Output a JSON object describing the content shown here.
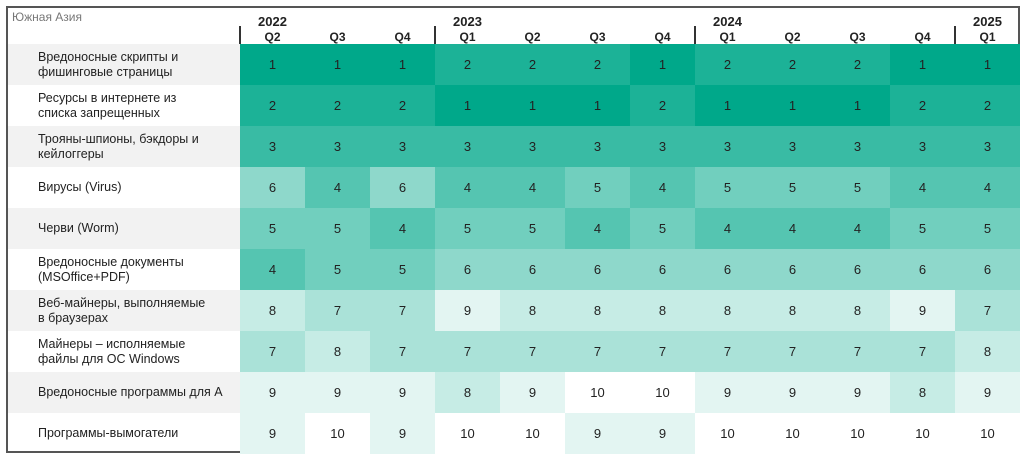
{
  "chart_data": {
    "type": "heatmap",
    "title": "Южная Азия",
    "years": [
      {
        "label": "2022",
        "col": 0
      },
      {
        "label": "2023",
        "col": 3
      },
      {
        "label": "2024",
        "col": 7
      },
      {
        "label": "2025",
        "col": 11
      }
    ],
    "columns": [
      "Q2",
      "Q3",
      "Q4",
      "Q1",
      "Q2",
      "Q3",
      "Q4",
      "Q1",
      "Q2",
      "Q3",
      "Q4",
      "Q1"
    ],
    "rows": [
      {
        "label": "Вредоносные скрипты и\nфишинговые страницы",
        "values": [
          1,
          1,
          1,
          2,
          2,
          2,
          1,
          2,
          2,
          2,
          1,
          1
        ]
      },
      {
        "label": "Ресурсы в интернете из\nсписка запрещенных",
        "values": [
          2,
          2,
          2,
          1,
          1,
          1,
          2,
          1,
          1,
          1,
          2,
          2
        ]
      },
      {
        "label": "Трояны-шпионы, бэкдоры и\nкейлоггеры",
        "values": [
          3,
          3,
          3,
          3,
          3,
          3,
          3,
          3,
          3,
          3,
          3,
          3
        ]
      },
      {
        "label": "Вирусы (Virus)",
        "values": [
          6,
          4,
          6,
          4,
          4,
          5,
          4,
          5,
          5,
          5,
          4,
          4
        ]
      },
      {
        "label": "Черви (Worm)",
        "values": [
          5,
          5,
          4,
          5,
          5,
          4,
          5,
          4,
          4,
          4,
          5,
          5
        ]
      },
      {
        "label": "Вредоносные документы\n(MSOffice+PDF)",
        "values": [
          4,
          5,
          5,
          6,
          6,
          6,
          6,
          6,
          6,
          6,
          6,
          6
        ]
      },
      {
        "label": "Веб-майнеры, выполняемые\nв браузерах",
        "values": [
          8,
          7,
          7,
          9,
          8,
          8,
          8,
          8,
          8,
          8,
          9,
          7
        ]
      },
      {
        "label": "Майнеры – исполняемые\nфайлы для ОС Windows",
        "values": [
          7,
          8,
          7,
          7,
          7,
          7,
          7,
          7,
          7,
          7,
          7,
          8
        ]
      },
      {
        "label": "Вредоносные программы для А",
        "values": [
          9,
          9,
          9,
          8,
          9,
          10,
          10,
          9,
          9,
          9,
          8,
          9
        ]
      },
      {
        "label": "Программы-вымогатели",
        "values": [
          9,
          10,
          9,
          10,
          10,
          9,
          9,
          10,
          10,
          10,
          10,
          10
        ]
      }
    ],
    "color_scale": {
      "low_rank": "#00a88a",
      "high_rank": "#ffffff"
    }
  }
}
